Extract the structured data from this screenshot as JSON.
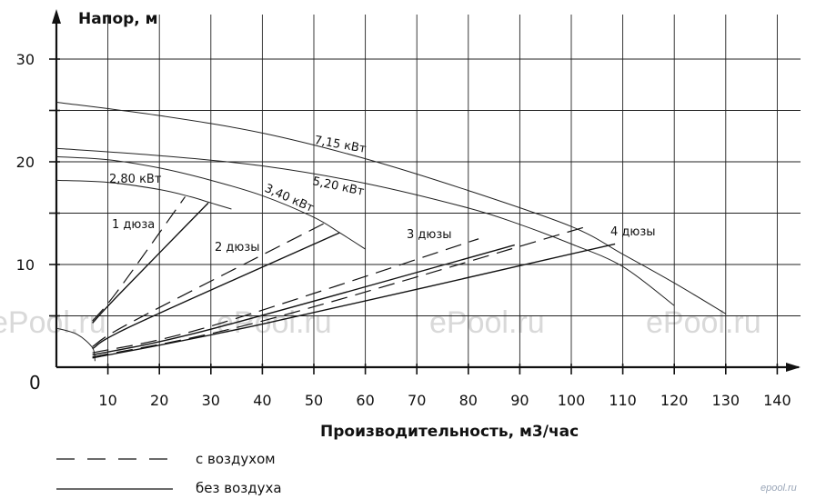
{
  "chart_data": {
    "type": "line",
    "ylabel": "Напор, м",
    "xlabel": "Производительность, м3/час",
    "xlim": [
      0,
      145
    ],
    "ylim": [
      0,
      33
    ],
    "x_ticks": [
      10,
      20,
      30,
      40,
      50,
      60,
      70,
      80,
      90,
      100,
      110,
      120,
      130,
      140
    ],
    "y_ticks": [
      10,
      20,
      30
    ],
    "origin_label": "0",
    "grid": true,
    "pump_curves": [
      {
        "name": "2,80 кВт",
        "x": [
          0,
          10,
          20,
          26,
          30,
          34
        ],
        "y": [
          18.2,
          18.0,
          17.3,
          16.6,
          16.0,
          15.4
        ]
      },
      {
        "name": "3,40 кВт",
        "x": [
          0,
          10,
          20,
          30,
          40,
          50,
          55,
          60
        ],
        "y": [
          20.5,
          20.2,
          19.4,
          18.2,
          16.7,
          14.6,
          13.1,
          11.5
        ]
      },
      {
        "name": "5,20 кВт",
        "x": [
          0,
          20,
          40,
          60,
          80,
          90,
          100,
          110,
          120
        ],
        "y": [
          21.3,
          20.6,
          19.6,
          17.9,
          15.5,
          13.9,
          12.0,
          9.8,
          6.0
        ]
      },
      {
        "name": "7,15 кВт",
        "x": [
          0,
          20,
          40,
          60,
          80,
          100,
          110,
          120,
          130
        ],
        "y": [
          25.8,
          24.5,
          22.8,
          20.3,
          17.2,
          13.7,
          11.0,
          8.2,
          5.2
        ]
      }
    ],
    "system_curves": [
      {
        "name": "1 дюза",
        "style": "с воздухом",
        "x": [
          7,
          12,
          25
        ],
        "y": [
          4.5,
          7.5,
          16.6
        ]
      },
      {
        "name": "1 дюза",
        "style": "без воздуха",
        "x": [
          7,
          12,
          29.5
        ],
        "y": [
          4.3,
          7.0,
          16.0
        ]
      },
      {
        "name": "2 дюзы",
        "style": "с воздухом",
        "x": [
          7,
          15,
          52
        ],
        "y": [
          2.0,
          4.5,
          14.0
        ]
      },
      {
        "name": "2 дюзы",
        "style": "без воздуха",
        "x": [
          7,
          15,
          55
        ],
        "y": [
          1.8,
          4.1,
          13.1
        ]
      },
      {
        "name": "3 дюзы",
        "style": "с воздухом",
        "x": [
          7,
          30,
          82
        ],
        "y": [
          1.4,
          4.0,
          12.5
        ]
      },
      {
        "name": "3 дюзы",
        "style": "без воздуха",
        "x": [
          7,
          30,
          89
        ],
        "y": [
          1.2,
          3.7,
          11.9
        ]
      },
      {
        "name": "4 дюзы",
        "style": "с воздухом",
        "x": [
          7,
          40,
          103
        ],
        "y": [
          1.0,
          4.5,
          13.7
        ]
      },
      {
        "name": "4 дюзы",
        "style": "без воздуха",
        "x": [
          7,
          40,
          108.5
        ],
        "y": [
          0.9,
          4.2,
          12.0
        ]
      }
    ],
    "suction_curve": {
      "x": [
        0,
        4,
        7,
        7.5
      ],
      "y": [
        3.8,
        3.2,
        1.9,
        0.6
      ]
    },
    "curve_labels": [
      "2,80 кВт",
      "3,40 кВт",
      "5,20 кВт",
      "7,15 кВт",
      "1 дюза",
      "2 дюзы",
      "3 дюзы",
      "4 дюзы"
    ],
    "legend": [
      {
        "style": "dashed",
        "label": "с воздухом"
      },
      {
        "style": "solid",
        "label": "без воздуха"
      }
    ]
  },
  "watermark": {
    "text": "ePool.ru",
    "small": "epool.ru"
  }
}
